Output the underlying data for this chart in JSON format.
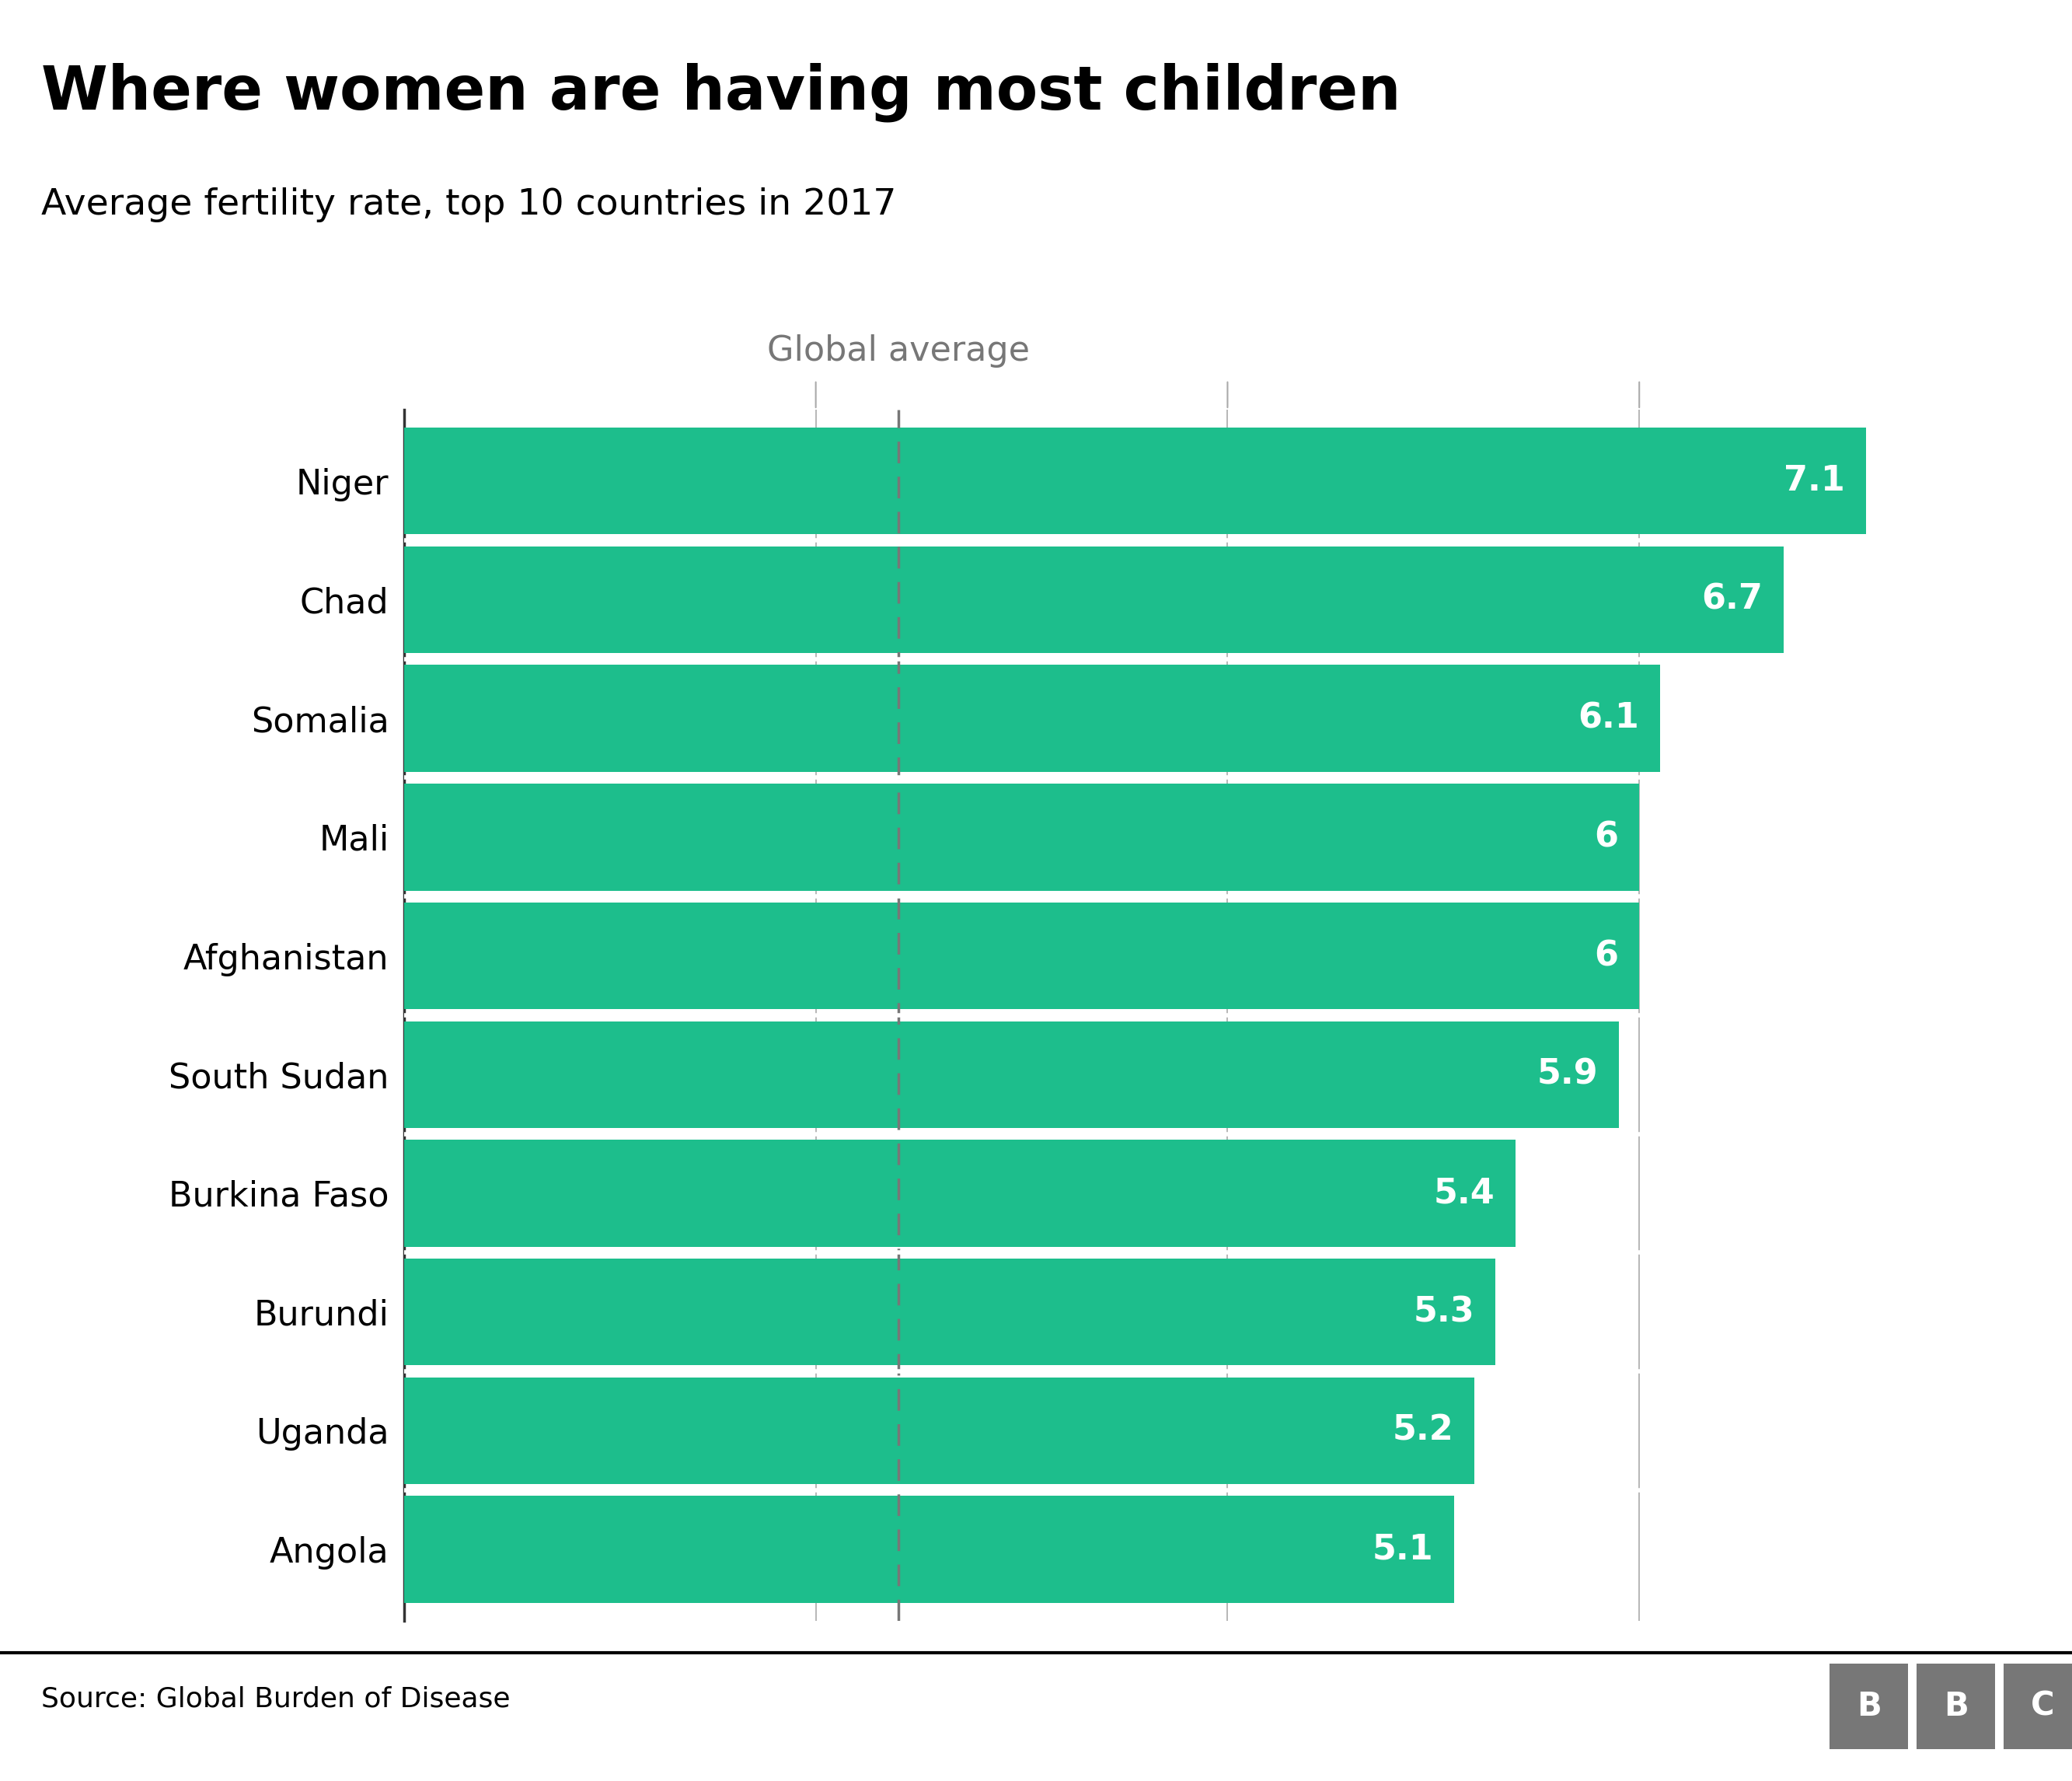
{
  "title": "Where women are having most children",
  "subtitle": "Average fertility rate, top 10 countries in 2017",
  "source": "Source: Global Burden of Disease",
  "countries": [
    "Niger",
    "Chad",
    "Somalia",
    "Mali",
    "Afghanistan",
    "South Sudan",
    "Burkina Faso",
    "Burundi",
    "Uganda",
    "Angola"
  ],
  "values": [
    7.1,
    6.7,
    6.1,
    6.0,
    6.0,
    5.9,
    5.4,
    5.3,
    5.2,
    5.1
  ],
  "bar_color": "#1dbe8c",
  "global_average": 2.4,
  "global_average_label": "Global average",
  "xlim": [
    0,
    7.8
  ],
  "background_color": "#ffffff",
  "title_fontsize": 56,
  "subtitle_fontsize": 34,
  "label_fontsize": 32,
  "value_fontsize": 32,
  "source_fontsize": 26,
  "axis_tick_color": "#aaaaaa",
  "global_avg_line_color": "#777777",
  "global_avg_label_color": "#777777",
  "bar_gap": 0.1,
  "bbc_box_color": "#777777"
}
